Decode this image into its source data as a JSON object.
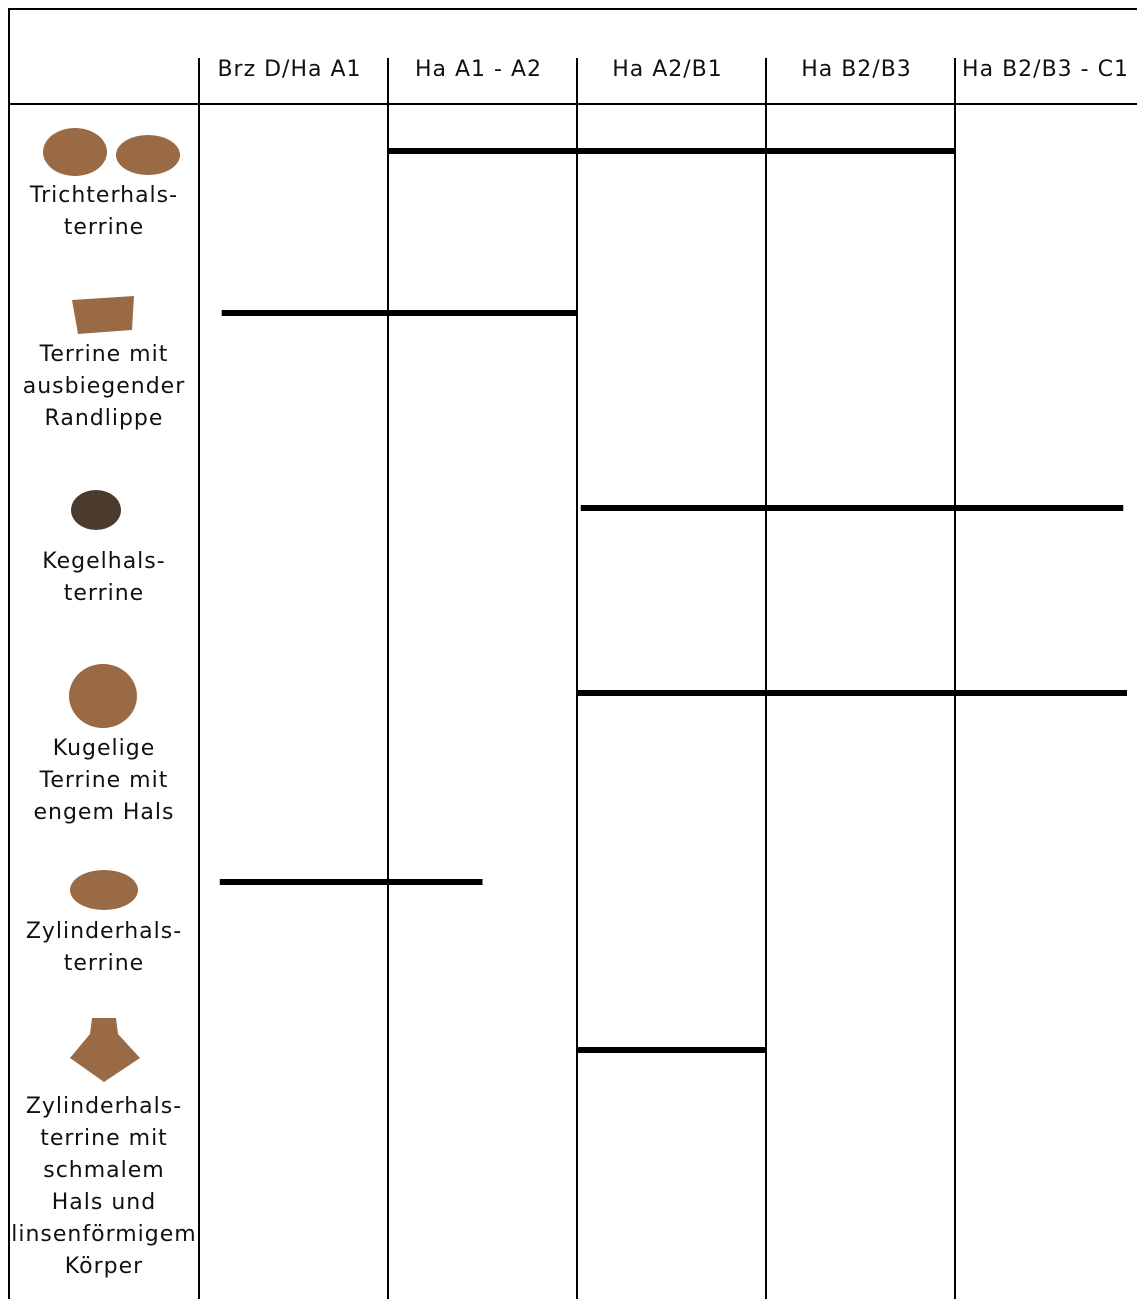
{
  "columns": [
    "Brz D/Ha A1",
    "Ha A1 - A2",
    "Ha A2/B1",
    "Ha B2/B3",
    "Ha B2/B3 - C1"
  ],
  "rows": [
    {
      "label": [
        "Trichterhals-",
        "terrine"
      ],
      "start": 1,
      "end": 4
    },
    {
      "label": [
        "Terrine mit",
        "ausbiegender",
        "Randlippe"
      ],
      "start": 0.12,
      "end": 2
    },
    {
      "label": [
        "Kegelhals-",
        "terrine"
      ],
      "start": 2.02,
      "end": 4.89
    },
    {
      "label": [
        "Kugelige",
        "Terrine mit",
        "engem Hals"
      ],
      "start": 2,
      "end": 4.91
    },
    {
      "label": [
        "Zylinderhals-",
        "terrine"
      ],
      "start": 0.11,
      "end": 1.5
    },
    {
      "label": [
        "Zylinderhals-",
        "terrine mit",
        "schmalem",
        "Hals und",
        "linsenförmigem",
        "Körper"
      ],
      "start": 2,
      "end": 3
    }
  ]
}
